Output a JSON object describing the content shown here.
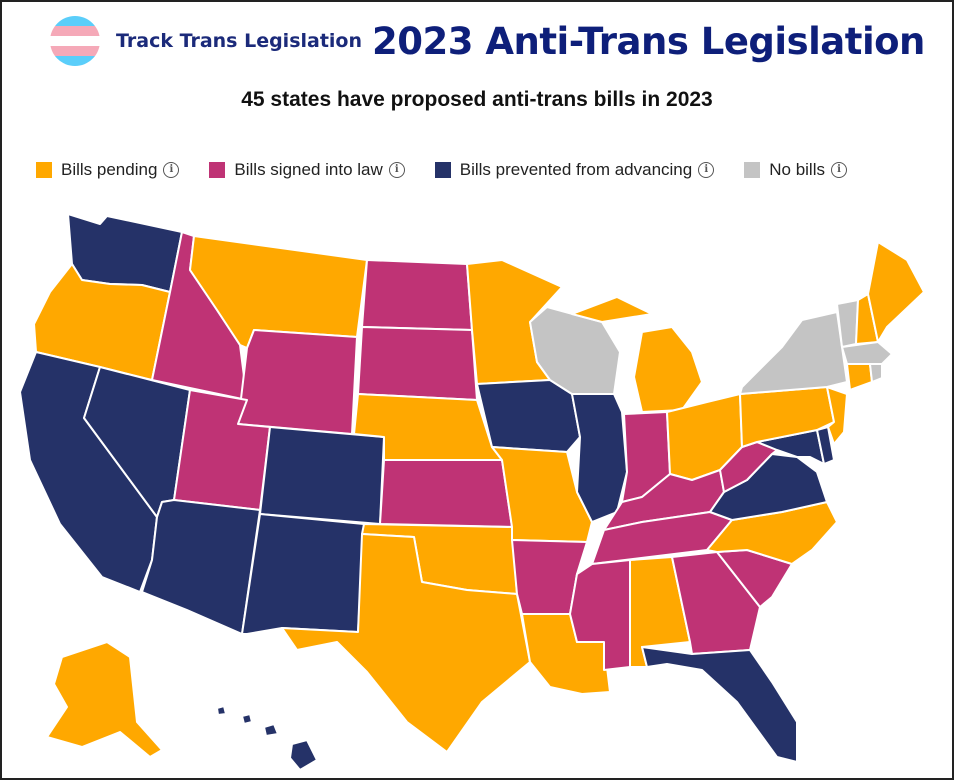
{
  "header": {
    "brand": "Track Trans Legislation",
    "title": "2023 Anti-Trans Legislation",
    "subtitle": "45 states have proposed anti-trans bills in 2023"
  },
  "flag_colors": [
    "#5bcefa",
    "#f5a9b8",
    "#ffffff",
    "#f5a9b8",
    "#5bcefa"
  ],
  "legend": [
    {
      "key": "pending",
      "label": "Bills pending",
      "color": "#ffa800",
      "info_icon": "info-icon"
    },
    {
      "key": "signed",
      "label": "Bills signed into law",
      "color": "#bf3375",
      "info_icon": "info-icon"
    },
    {
      "key": "prevented",
      "label": "Bills prevented from advancing",
      "color": "#253268",
      "info_icon": "info-icon"
    },
    {
      "key": "none",
      "label": "No bills",
      "color": "#c4c4c4",
      "info_icon": "info-icon"
    }
  ],
  "states": {
    "WA": "prevented",
    "OR": "pending",
    "CA": "prevented",
    "NV": "prevented",
    "ID": "signed",
    "MT": "pending",
    "WY": "signed",
    "UT": "signed",
    "AZ": "prevented",
    "CO": "prevented",
    "NM": "prevented",
    "ND": "signed",
    "SD": "signed",
    "NE": "pending",
    "KS": "signed",
    "OK": "pending",
    "TX": "pending",
    "MN": "pending",
    "IA": "prevented",
    "MO": "pending",
    "AR": "signed",
    "LA": "pending",
    "WI": "none",
    "IL": "prevented",
    "MI": "pending",
    "IN": "signed",
    "OH": "pending",
    "KY": "signed",
    "TN": "signed",
    "MS": "signed",
    "AL": "pending",
    "GA": "signed",
    "FL": "prevented",
    "SC": "signed",
    "NC": "pending",
    "VA": "prevented",
    "WV": "signed",
    "MD": "prevented",
    "DE": "prevented",
    "NJ": "pending",
    "PA": "pending",
    "NY": "none",
    "VT": "none",
    "NH": "pending",
    "ME": "pending",
    "MA": "none",
    "RI": "none",
    "CT": "pending",
    "AK": "pending",
    "HI": "prevented"
  }
}
